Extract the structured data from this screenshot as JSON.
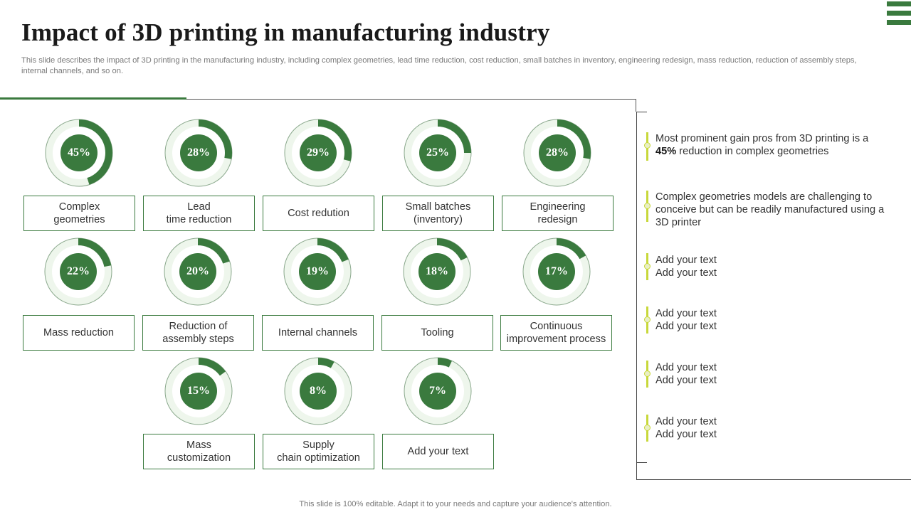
{
  "title": "Impact of 3D printing in manufacturing industry",
  "subtitle": "This slide describes the impact of 3D printing in the manufacturing industry, including complex geometries, lead time reduction, cost reduction, small batches in inventory, engineering redesign, mass reduction, reduction of assembly steps, internal channels, and so on.",
  "footer": "This slide is 100% editable. Adapt it to your needs and capture your audience's attention.",
  "colors": {
    "accent": "#3a7a3e",
    "ring_light": "#eef6ec",
    "highlight": "#c8d83a"
  },
  "metrics": [
    {
      "percent": 45,
      "label": "45%",
      "name": "Complex\ngeometries"
    },
    {
      "percent": 28,
      "label": "28%",
      "name": "Lead\ntime reduction"
    },
    {
      "percent": 29,
      "label": "29%",
      "name": "Cost redution"
    },
    {
      "percent": 25,
      "label": "25%",
      "name": "Small batches\n(inventory)"
    },
    {
      "percent": 28,
      "label": "28%",
      "name": "Engineering\nredesign"
    },
    {
      "percent": 22,
      "label": "22%",
      "name": "Mass reduction"
    },
    {
      "percent": 20,
      "label": "20%",
      "name": "Reduction of\nassembly steps"
    },
    {
      "percent": 19,
      "label": "19%",
      "name": "Internal channels"
    },
    {
      "percent": 18,
      "label": "18%",
      "name": "Tooling"
    },
    {
      "percent": 17,
      "label": "17%",
      "name": "Continuous\nimprovement process"
    },
    {
      "percent": 15,
      "label": "15%",
      "name": "Mass\ncustomization"
    },
    {
      "percent": 8,
      "label": "8%",
      "name": "Supply\nchain optimization"
    },
    {
      "percent": 7,
      "label": "7%",
      "name": "Add your text"
    }
  ],
  "notes": {
    "n1_prefix": "Most prominent gain pros from 3D printing is a",
    "n1_bold": "45%",
    "n1_suffix": " reduction in complex geometries",
    "n2": "Complex geometries models are challenging to conceive but can be readily manufactured using a 3D printer",
    "n3_line1": "Add your text",
    "n3_line2": "Add your text",
    "n4_line1": "Add your text",
    "n4_line2": "Add your text",
    "n5_line1": "Add your text",
    "n5_line2": "Add your text",
    "n6_line1": "Add your text",
    "n6_line2": "Add your text"
  }
}
